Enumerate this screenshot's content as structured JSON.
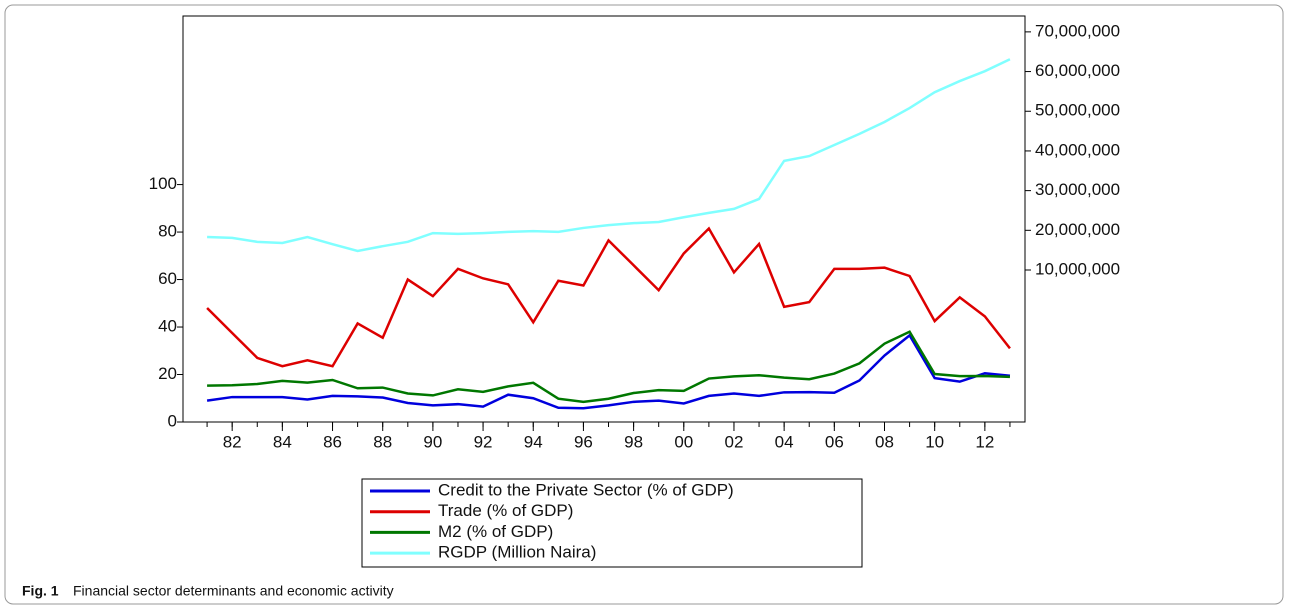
{
  "chart_data": {
    "type": "line",
    "x": [
      1981,
      1982,
      1983,
      1984,
      1985,
      1986,
      1987,
      1988,
      1989,
      1990,
      1991,
      1992,
      1993,
      1994,
      1995,
      1996,
      1997,
      1998,
      1999,
      2000,
      2001,
      2002,
      2003,
      2004,
      2005,
      2006,
      2007,
      2008,
      2009,
      2010,
      2011,
      2012,
      2013
    ],
    "xlim": [
      1980.04,
      2013.6
    ],
    "xticks": [
      {
        "value": 1982,
        "label": "82"
      },
      {
        "value": 1984,
        "label": "84"
      },
      {
        "value": 1986,
        "label": "86"
      },
      {
        "value": 1988,
        "label": "88"
      },
      {
        "value": 1990,
        "label": "90"
      },
      {
        "value": 1992,
        "label": "92"
      },
      {
        "value": 1994,
        "label": "94"
      },
      {
        "value": 1996,
        "label": "96"
      },
      {
        "value": 1998,
        "label": "98"
      },
      {
        "value": 2000,
        "label": "00"
      },
      {
        "value": 2002,
        "label": "02"
      },
      {
        "value": 2004,
        "label": "04"
      },
      {
        "value": 2006,
        "label": "06"
      },
      {
        "value": 2008,
        "label": "08"
      },
      {
        "value": 2010,
        "label": "10"
      },
      {
        "value": 2012,
        "label": "12"
      }
    ],
    "ylim": [
      0,
      171
    ],
    "yticks": [
      0,
      20,
      40,
      60,
      80,
      100
    ],
    "y2lim": [
      -28300000,
      74000000
    ],
    "y2ticks": [
      {
        "value": 10000000,
        "label": "10,000,000"
      },
      {
        "value": 20000000,
        "label": "20,000,000"
      },
      {
        "value": 30000000,
        "label": "30,000,000"
      },
      {
        "value": 40000000,
        "label": "40,000,000"
      },
      {
        "value": 50000000,
        "label": "50,000,000"
      },
      {
        "value": 60000000,
        "label": "60,000,000"
      },
      {
        "value": 70000000,
        "label": "70,000,000"
      }
    ],
    "series": [
      {
        "name": "Credit to the Private Sector (% of GDP)",
        "color": "#0000dd",
        "values": [
          9,
          10.5,
          10.5,
          10.5,
          9.5,
          11,
          10.8,
          10.3,
          8,
          7,
          7.5,
          6.5,
          11.5,
          10,
          6,
          5.8,
          7,
          8.5,
          9,
          7.8,
          11,
          12,
          11,
          12.5,
          12.6,
          12.3,
          17.5,
          28,
          36.5,
          18.5,
          17,
          20.5,
          19.5
        ]
      },
      {
        "name": "Trade  (% of GDP)",
        "color": "#dd0000",
        "values": [
          48,
          37.5,
          27,
          23.5,
          26,
          23.5,
          41.5,
          35.5,
          60,
          53,
          64.5,
          60.5,
          58,
          42,
          59.5,
          57.5,
          76.5,
          66,
          55.5,
          71,
          81.5,
          63,
          75,
          48.5,
          50.5,
          64.5,
          64.5,
          65,
          61.5,
          42.5,
          52.5,
          44.5,
          31
        ]
      },
      {
        "name": "M2 (% of GDP)",
        "color": "#007700",
        "values": [
          15.3,
          15.5,
          16,
          17.3,
          16.6,
          17.7,
          14.2,
          14.5,
          12,
          11.2,
          13.8,
          12.7,
          15,
          16.5,
          9.8,
          8.5,
          9.8,
          12.2,
          13.4,
          13.1,
          18.3,
          19.2,
          19.7,
          18.7,
          18,
          20.4,
          24.7,
          33,
          38,
          20.2,
          19.3,
          19.4,
          19
        ]
      },
      {
        "name": "RGDP (Million Naira)",
        "color": "#80ffff",
        "axis": "y2",
        "values": [
          18300000,
          18100000,
          17100000,
          16800000,
          18300000,
          16500000,
          14800000,
          16000000,
          17100000,
          19300000,
          19100000,
          19300000,
          19600000,
          19800000,
          19600000,
          20600000,
          21300000,
          21800000,
          22100000,
          23300000,
          24400000,
          25400000,
          27900000,
          37500000,
          38700000,
          41500000,
          44300000,
          47300000,
          50800000,
          54800000,
          57600000,
          60100000,
          63100000
        ]
      }
    ],
    "caption_label": "Fig. 1",
    "caption": "Financial sector determinants and economic activity"
  }
}
